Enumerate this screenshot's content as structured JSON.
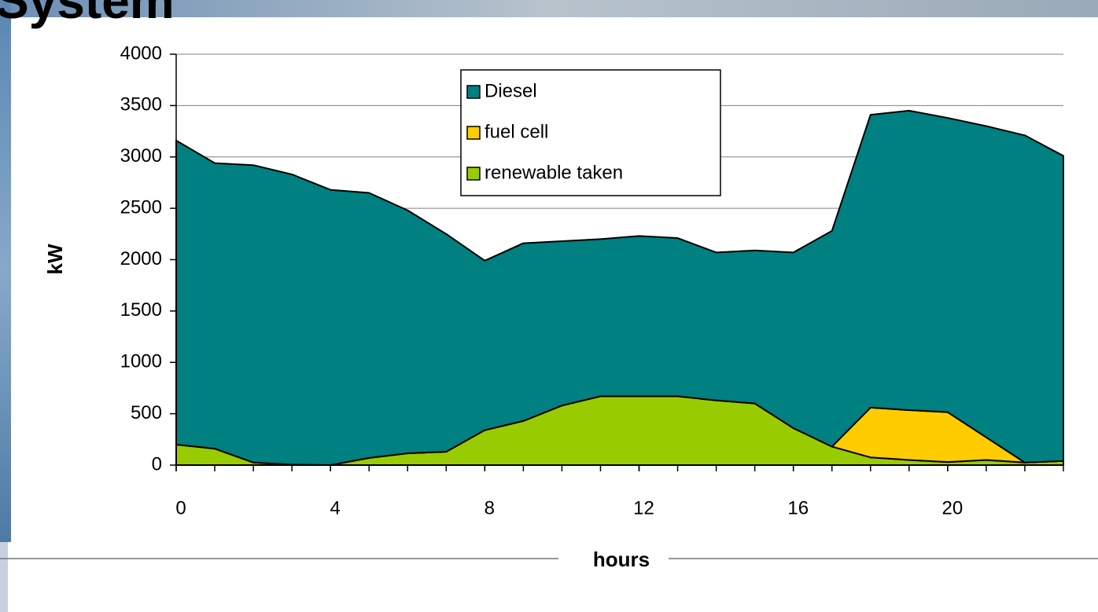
{
  "chart_data": {
    "type": "stacked-area",
    "title": "System",
    "x": [
      0,
      1,
      2,
      3,
      4,
      5,
      6,
      7,
      8,
      9,
      10,
      11,
      12,
      13,
      14,
      15,
      16,
      17,
      18,
      19,
      20,
      21,
      22,
      23
    ],
    "series": [
      {
        "name": "Diesel",
        "color": "#008080",
        "values": [
          2960,
          2780,
          2895,
          2825,
          2680,
          2580,
          2365,
          2120,
          1650,
          1730,
          1600,
          1530,
          1560,
          1540,
          1440,
          1490,
          1710,
          2100,
          2850,
          2915,
          2865,
          3030,
          3185,
          2970
        ]
      },
      {
        "name": "fuel cell",
        "color": "#ffcc00",
        "values": [
          0,
          0,
          0,
          0,
          0,
          0,
          0,
          0,
          0,
          0,
          0,
          0,
          0,
          0,
          0,
          0,
          0,
          0,
          485,
          485,
          485,
          220,
          0,
          0
        ]
      },
      {
        "name": "renewable taken",
        "color": "#99cc00",
        "values": [
          200,
          160,
          25,
          5,
          0,
          70,
          115,
          130,
          340,
          430,
          580,
          670,
          670,
          670,
          630,
          600,
          360,
          180,
          75,
          50,
          30,
          50,
          25,
          40
        ]
      }
    ],
    "xlim": [
      0,
      23
    ],
    "xticks": [
      0,
      4,
      8,
      12,
      16,
      20
    ],
    "ylim": [
      0,
      4000
    ],
    "yticks": [
      0,
      500,
      1000,
      1500,
      2000,
      2500,
      3000,
      3500,
      4000
    ],
    "x_label": "hours",
    "y_label": "kW",
    "grid": true
  }
}
